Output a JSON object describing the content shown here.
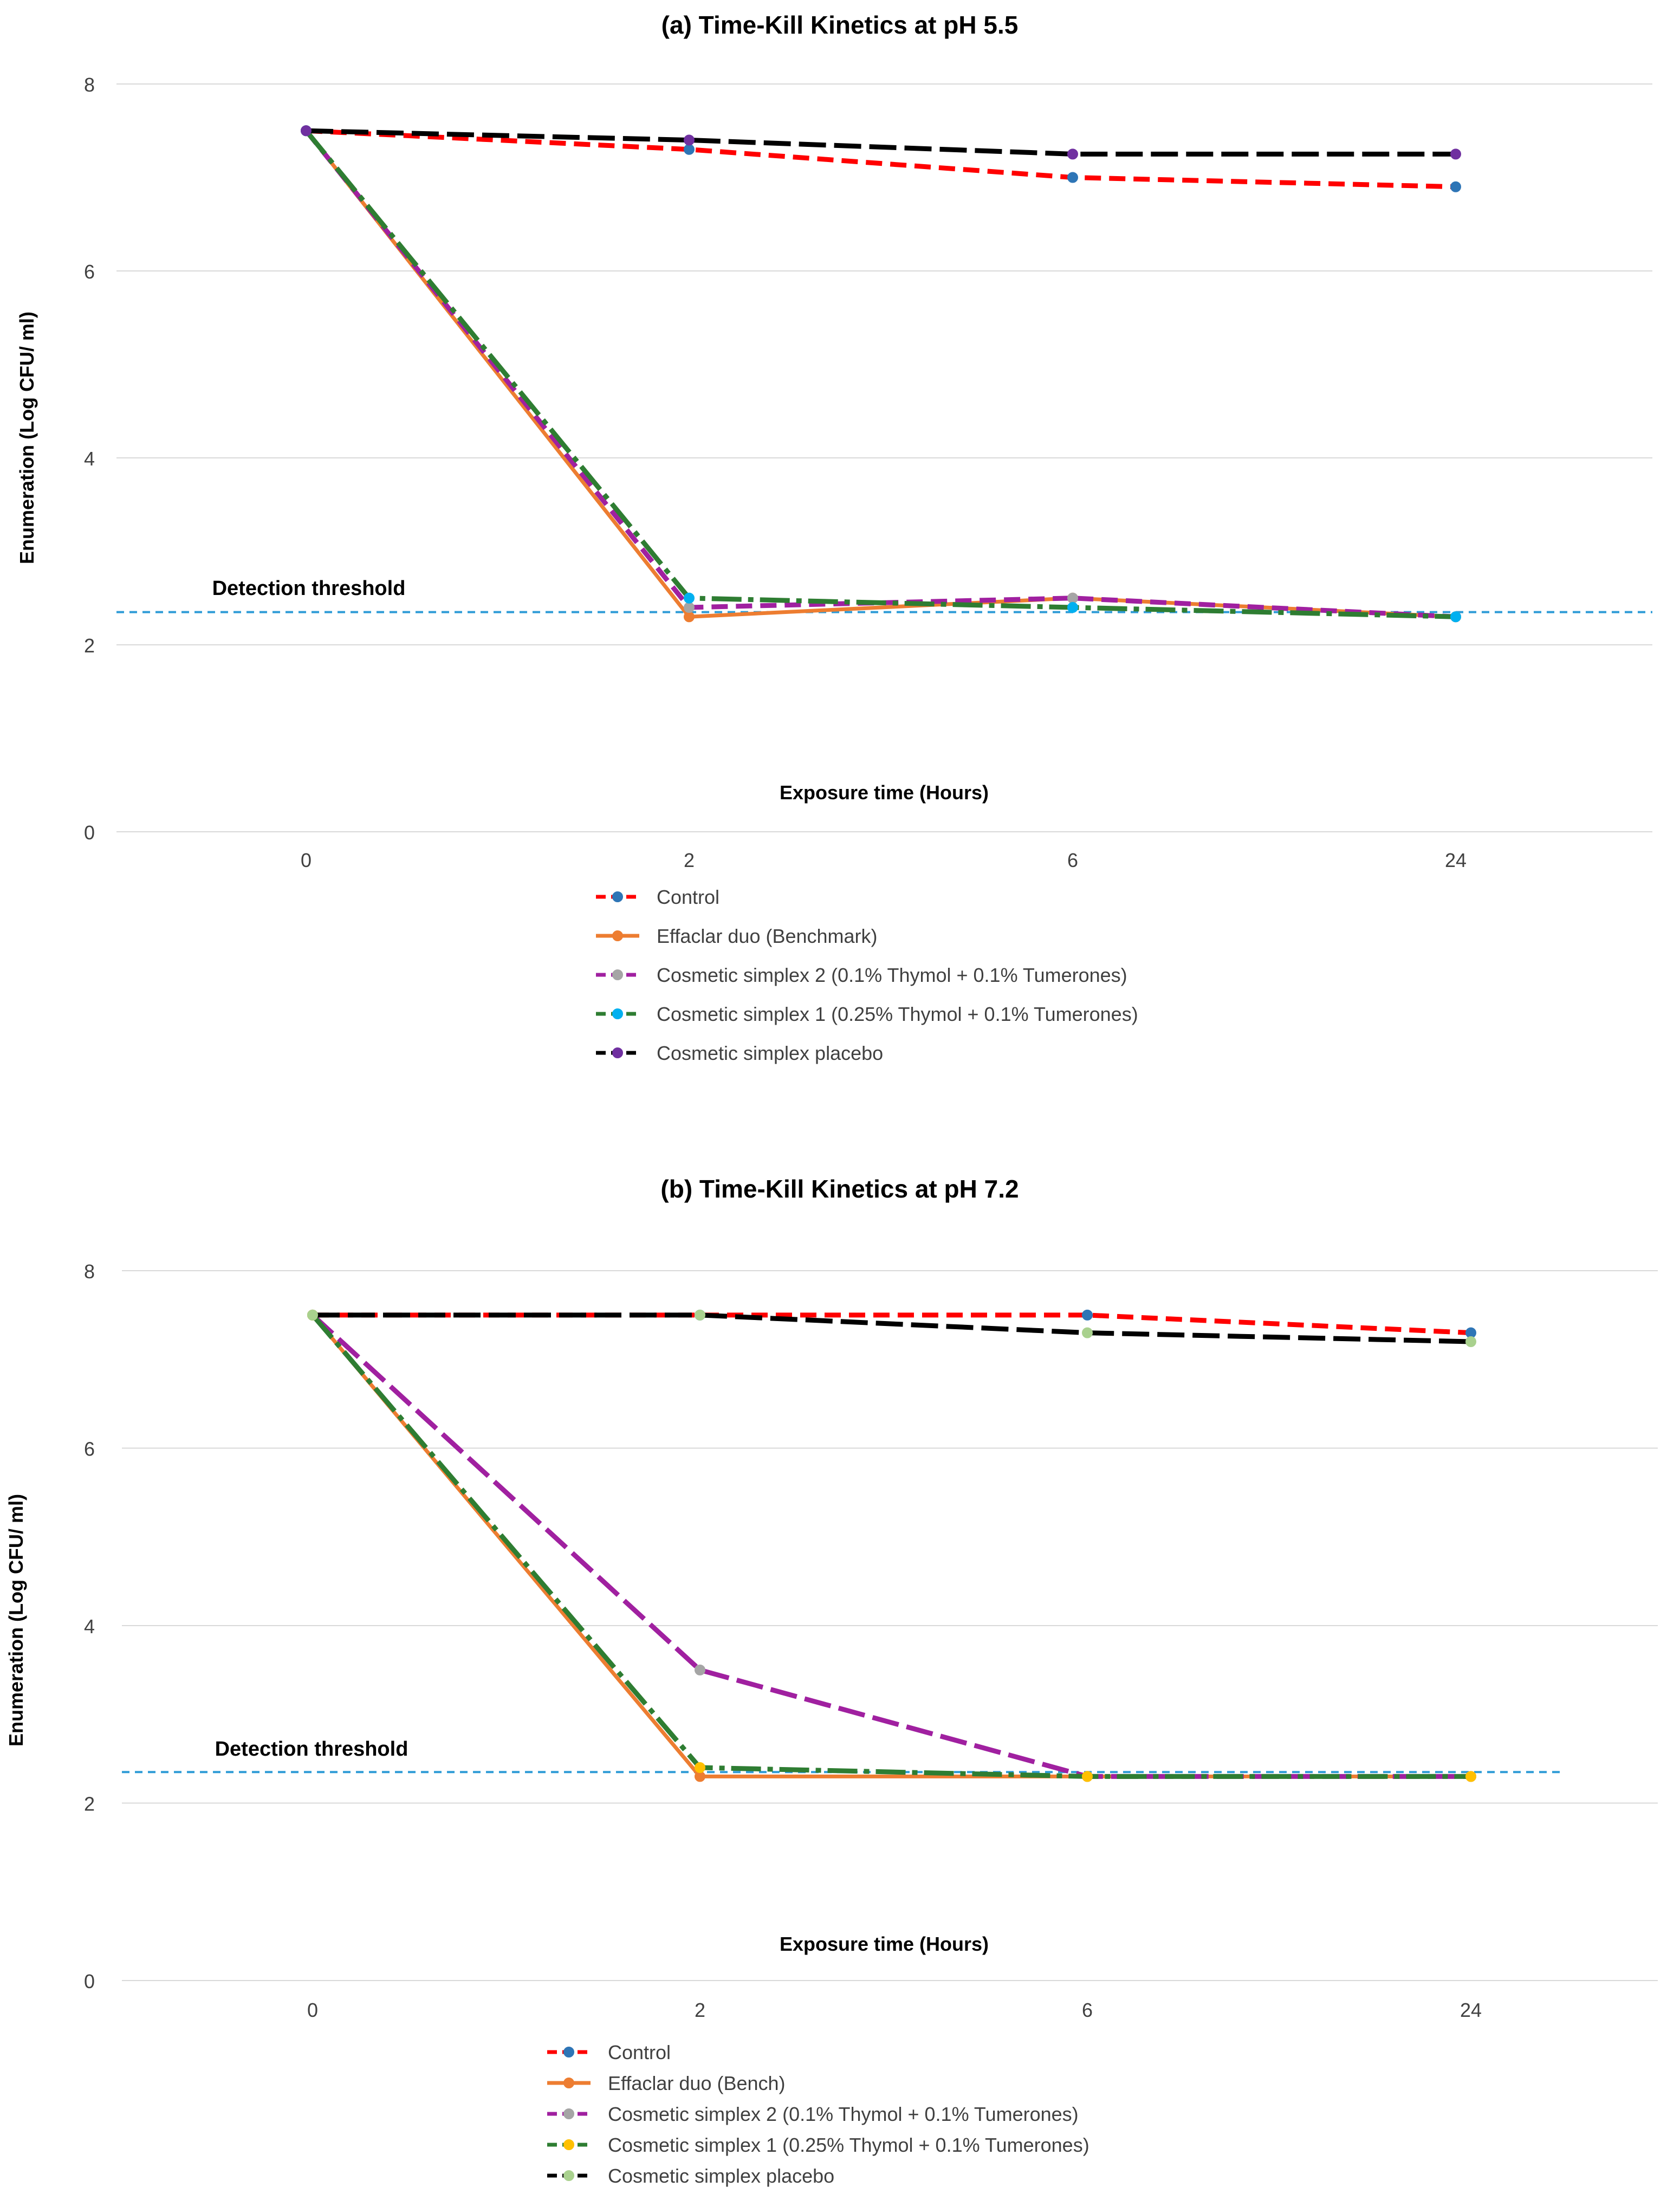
{
  "figure": {
    "colors": {
      "gridline": "#d9d9d9",
      "axis_text": "#404040",
      "threshold": "#2e9bd6"
    }
  },
  "chart_data": [
    {
      "type": "line",
      "title": "(a) Time-Kill Kinetics at pH 5.5",
      "xlabel": "Exposure time (Hours)",
      "ylabel": "Enumeration (Log CFU/ ml)",
      "categories": [
        "0",
        "2",
        "6",
        "24"
      ],
      "ylim": [
        0,
        8
      ],
      "yticks": [
        "0",
        "2",
        "4",
        "6",
        "8"
      ],
      "grid": true,
      "legend_position": "bottom",
      "threshold": {
        "label": "Detection threshold",
        "value": 2.35
      },
      "series": [
        {
          "name": "Control",
          "values": [
            7.5,
            7.3,
            7.0,
            6.9
          ],
          "color": "#ff0000",
          "marker_color": "#2e75b6",
          "dash": "medium"
        },
        {
          "name": "Effaclar duo (Benchmark)",
          "values": [
            7.5,
            2.3,
            2.5,
            2.3
          ],
          "color": "#ed7d31",
          "marker_color": "#ed7d31",
          "dash": "solid"
        },
        {
          "name": "Cosmetic simplex 2 (0.1% Thymol + 0.1% Tumerones)",
          "values": [
            7.5,
            2.4,
            2.5,
            2.3
          ],
          "color": "#a020a0",
          "marker_color": "#a5a5a5",
          "dash": "medium"
        },
        {
          "name": "Cosmetic simplex 1 (0.25% Thymol + 0.1% Tumerones)",
          "values": [
            7.5,
            2.5,
            2.4,
            2.3
          ],
          "color": "#2e7d32",
          "marker_color": "#00b0f0",
          "dash": "long-dot"
        },
        {
          "name": "Cosmetic simplex placebo",
          "values": [
            7.5,
            7.4,
            7.25,
            7.25
          ],
          "color": "#000000",
          "marker_color": "#7030a0",
          "dash": "long"
        }
      ]
    },
    {
      "type": "line",
      "title": "(b) Time-Kill Kinetics at pH 7.2",
      "xlabel": "Exposure time (Hours)",
      "ylabel": "Enumeration (Log CFU/ ml)",
      "categories": [
        "0",
        "2",
        "6",
        "24"
      ],
      "ylim": [
        0,
        8
      ],
      "yticks": [
        "0",
        "2",
        "4",
        "6",
        "8"
      ],
      "grid": true,
      "legend_position": "bottom",
      "threshold": {
        "label": "Detection threshold",
        "value": 2.35
      },
      "series": [
        {
          "name": "Control",
          "values": [
            7.5,
            7.5,
            7.5,
            7.3
          ],
          "color": "#ff0000",
          "marker_color": "#2e75b6",
          "dash": "medium"
        },
        {
          "name": "Effaclar duo (Bench)",
          "values": [
            7.5,
            2.3,
            2.3,
            2.3
          ],
          "color": "#ed7d31",
          "marker_color": "#ed7d31",
          "dash": "solid"
        },
        {
          "name": "Cosmetic simplex 2 (0.1% Thymol + 0.1% Tumerones)",
          "values": [
            7.5,
            3.5,
            2.3,
            2.3
          ],
          "color": "#a020a0",
          "marker_color": "#a5a5a5",
          "dash": "long"
        },
        {
          "name": "Cosmetic simplex 1 (0.25% Thymol + 0.1% Tumerones)",
          "values": [
            7.5,
            2.4,
            2.3,
            2.3
          ],
          "color": "#2e7d32",
          "marker_color": "#ffc000",
          "dash": "long-dot"
        },
        {
          "name": "Cosmetic simplex placebo",
          "values": [
            7.5,
            7.5,
            7.3,
            7.2
          ],
          "color": "#000000",
          "marker_color": "#a9d18e",
          "dash": "long"
        }
      ]
    }
  ]
}
